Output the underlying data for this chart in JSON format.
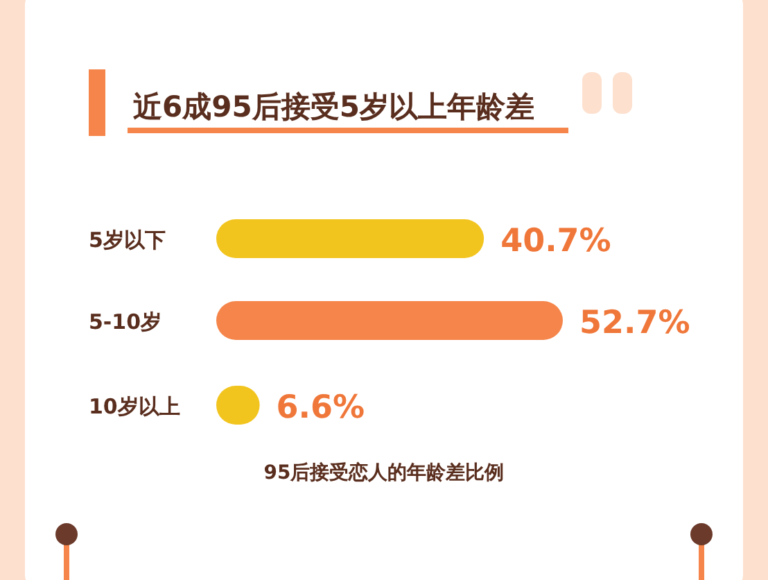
{
  "chart_data": {
    "type": "bar",
    "orientation": "horizontal",
    "title": "近6成95后接受5岁以上年龄差",
    "categories": [
      "5岁以下",
      "5-10岁",
      "10岁以上"
    ],
    "values": [
      40.7,
      52.7,
      6.6
    ],
    "value_labels": [
      "40.7%",
      "52.7%",
      "6.6%"
    ],
    "colors": [
      "#f2c41e",
      "#f5854a",
      "#f2c41e"
    ],
    "annotations": [
      "95后接受恋人的年龄差比例"
    ]
  }
}
